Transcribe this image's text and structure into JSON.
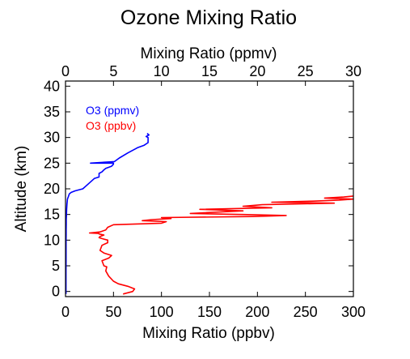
{
  "chart_data": {
    "type": "line",
    "title": "Ozone Mixing Ratio",
    "ylabel": "Altitude (km)",
    "xlabel_bottom": "Mixing Ratio (ppbv)",
    "xlabel_top": "Mixing Ratio (ppmv)",
    "ylim": [
      -1,
      41
    ],
    "xlim_bottom": [
      0,
      300
    ],
    "xlim_top": [
      0,
      30
    ],
    "yticks": [
      0,
      5,
      10,
      15,
      20,
      25,
      30,
      35,
      40
    ],
    "xticks_bottom": [
      0,
      50,
      100,
      150,
      200,
      250,
      300
    ],
    "xticks_top": [
      0,
      5,
      10,
      15,
      20,
      25,
      30
    ],
    "legend_position": "top-left",
    "series": [
      {
        "name": "O3 (ppmv)",
        "color": "#0000ff",
        "axis": "top",
        "x": [
          0.05,
          0.05,
          0.05,
          0.06,
          0.06,
          0.06,
          0.07,
          0.07,
          0.08,
          0.08,
          0.1,
          0.12,
          0.15,
          0.2,
          0.3,
          0.4,
          0.6,
          1.0,
          1.8,
          2.4,
          3.0,
          3.5,
          3.5,
          3.8,
          4.0,
          4.2,
          4.8,
          5.0,
          5.0,
          2.6,
          5.1,
          5.6,
          6.5,
          7.5,
          8.2,
          8.6,
          8.6,
          8.6,
          8.4,
          8.7,
          8.5
        ],
        "y": [
          -0.5,
          2,
          4,
          6,
          8,
          10,
          11,
          12,
          13,
          14,
          15,
          16,
          17,
          18,
          18.5,
          19,
          19.3,
          19.6,
          20,
          21,
          22,
          22.3,
          23,
          23.3,
          23.7,
          24,
          24.4,
          24.8,
          25,
          25,
          25.3,
          26,
          27,
          28,
          28.5,
          29,
          29.5,
          30,
          30.2,
          30.5,
          30.8
        ]
      },
      {
        "name": "O3 (ppbv)",
        "color": "#ff0000",
        "axis": "bottom",
        "x": [
          60,
          70,
          72,
          65,
          55,
          50,
          45,
          42,
          43,
          40,
          38,
          45,
          48,
          40,
          36,
          38,
          44,
          44,
          38,
          35,
          36,
          40,
          35,
          35,
          25,
          36,
          42,
          44,
          50,
          100,
          105,
          80,
          90,
          110,
          100,
          195,
          230,
          185,
          130,
          185,
          140,
          215,
          185,
          205,
          280,
          215,
          258,
          285,
          300,
          270,
          290,
          300
        ],
        "y": [
          -0.5,
          0,
          0.5,
          1,
          1.5,
          2,
          3,
          4,
          4.8,
          5,
          6,
          6.5,
          7,
          7.5,
          8,
          9,
          9.5,
          10,
          10.3,
          10.5,
          10.7,
          11,
          11.2,
          11.3,
          11.4,
          11.6,
          12,
          12.5,
          13,
          13.3,
          13.6,
          13.8,
          14,
          14.2,
          14.4,
          14.6,
          14.8,
          15,
          15.2,
          15.7,
          16,
          16.3,
          16.6,
          16.9,
          17.2,
          17.4,
          17.6,
          17.8,
          18,
          18.2,
          18.4,
          18.6
        ]
      }
    ]
  }
}
